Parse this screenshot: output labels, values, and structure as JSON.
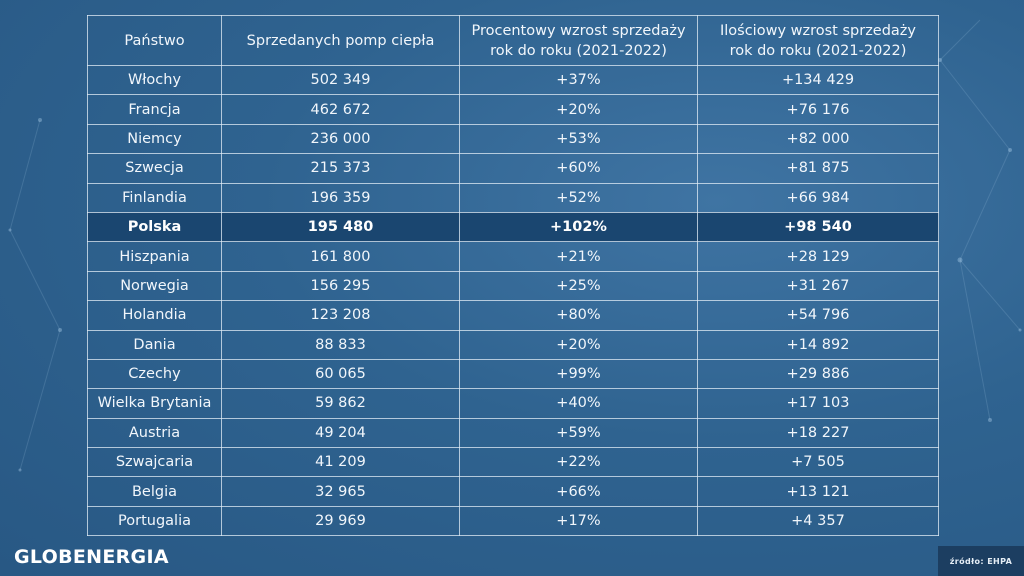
{
  "table": {
    "headers": [
      [
        "Państwo"
      ],
      [
        "Sprzedanych pomp ciepła"
      ],
      [
        "Procentowy wzrost sprzedaży",
        "rok do roku (2021-2022)"
      ],
      [
        "Ilościowy wzrost sprzedaży",
        "rok do roku (2021-2022)"
      ]
    ],
    "highlighted_row": "Polska",
    "rows": [
      [
        "Włochy",
        "502 349",
        "+37%",
        "+134 429"
      ],
      [
        "Francja",
        "462 672",
        "+20%",
        "+76 176"
      ],
      [
        "Niemcy",
        "236 000",
        "+53%",
        "+82 000"
      ],
      [
        "Szwecja",
        "215 373",
        "+60%",
        "+81 875"
      ],
      [
        "Finlandia",
        "196 359",
        "+52%",
        "+66 984"
      ],
      [
        "Polska",
        "195 480",
        "+102%",
        "+98 540"
      ],
      [
        "Hiszpania",
        "161 800",
        "+21%",
        "+28 129"
      ],
      [
        "Norwegia",
        "156 295",
        "+25%",
        "+31 267"
      ],
      [
        "Holandia",
        "123 208",
        "+80%",
        "+54 796"
      ],
      [
        "Dania",
        "88 833",
        "+20%",
        "+14 892"
      ],
      [
        "Czechy",
        "60 065",
        "+99%",
        "+29 886"
      ],
      [
        "Wielka Brytania",
        "59 862",
        "+40%",
        "+17 103"
      ],
      [
        "Austria",
        "49 204",
        "+59%",
        "+18 227"
      ],
      [
        "Szwajcaria",
        "41 209",
        "+22%",
        "+7 505"
      ],
      [
        "Belgia",
        "32 965",
        "+66%",
        "+13 121"
      ],
      [
        "Portugalia",
        "29 969",
        "+17%",
        "+4 357"
      ]
    ]
  },
  "brand": "GLOBENERGIA",
  "source": "źródło: EHPA",
  "colors": {
    "background": "#2f6390",
    "highlight_row": "#1a4670",
    "source_box": "#1c3e61",
    "grid_lines": "#e1ecf6"
  }
}
